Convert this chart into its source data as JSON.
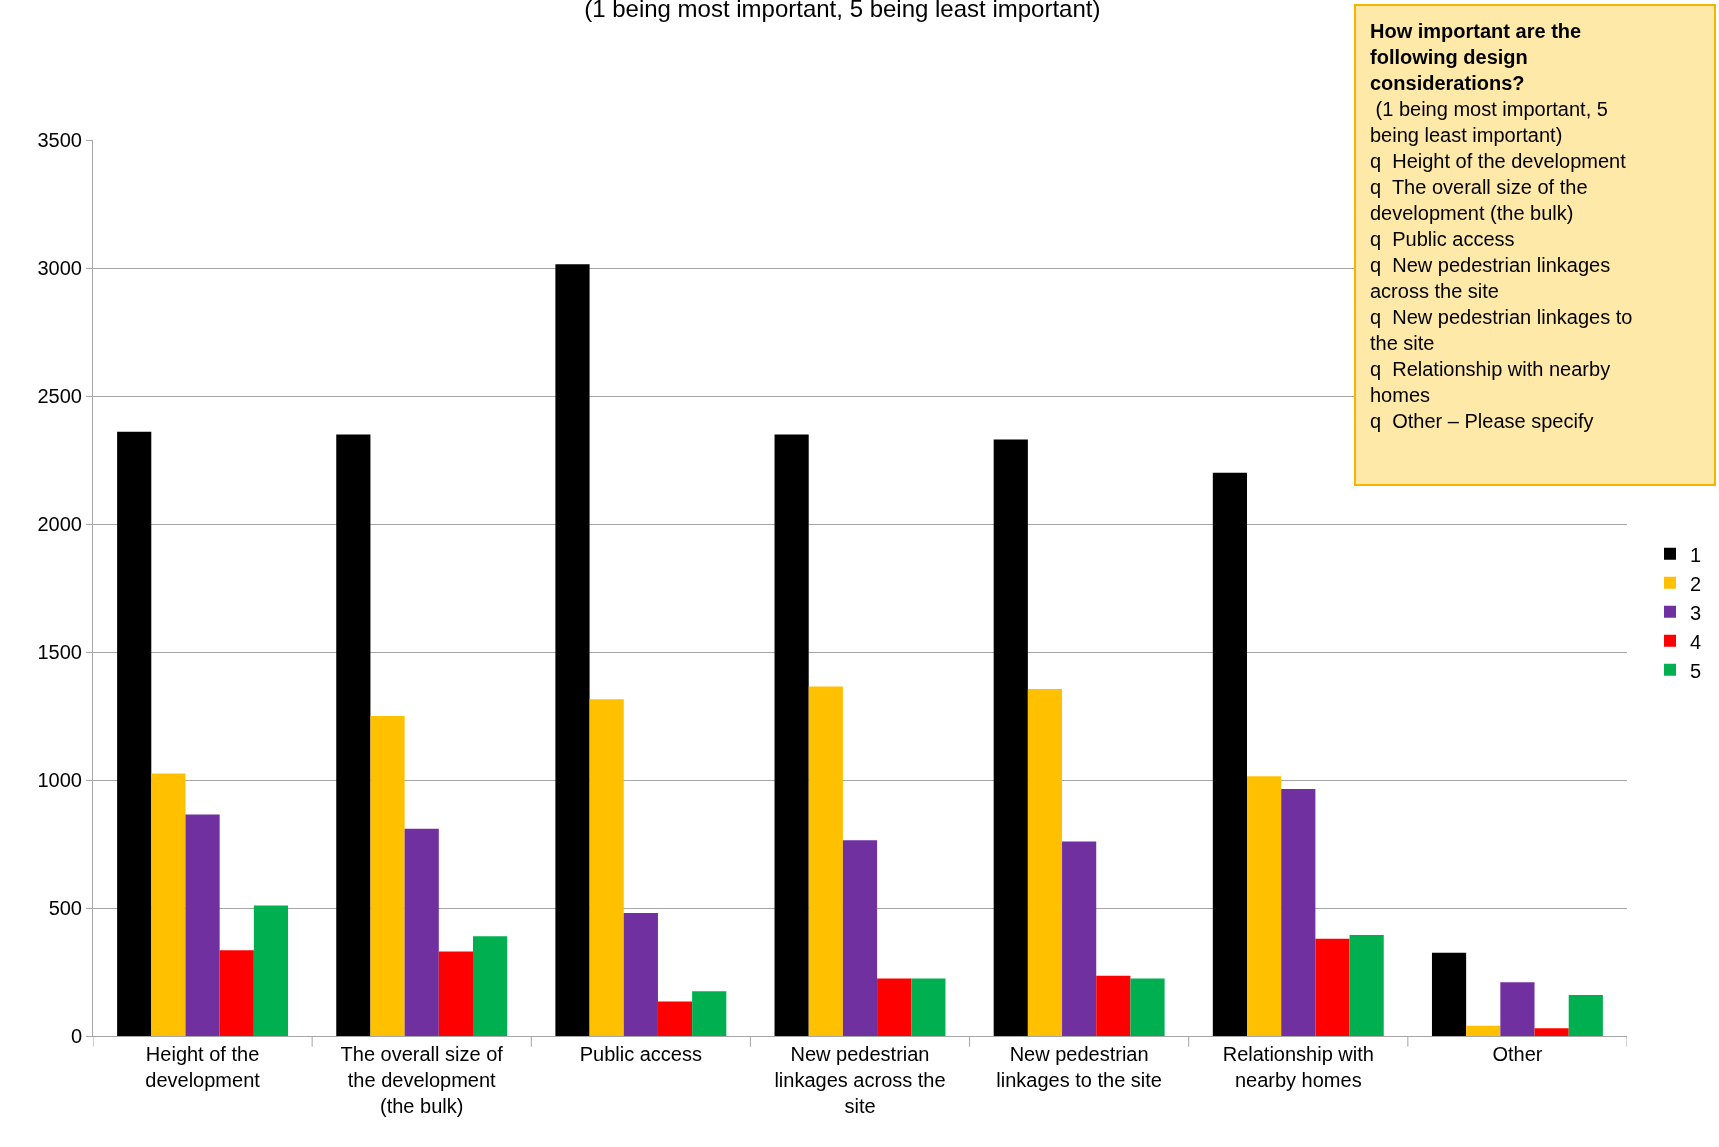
{
  "chart_data": {
    "type": "bar",
    "title": "(1 being most important, 5 being least important)",
    "categories": [
      "Height of the\ndevelopment",
      "The overall size of\nthe development\n(the bulk)",
      "Public access",
      "New pedestrian\nlinkages across the\nsite",
      "New pedestrian\nlinkages to the site",
      "Relationship with\nnearby homes",
      "Other"
    ],
    "series": [
      {
        "name": "1",
        "color": "#000000",
        "values": [
          2360,
          2350,
          3015,
          2350,
          2330,
          2200,
          325
        ]
      },
      {
        "name": "2",
        "color": "#ffc000",
        "values": [
          1025,
          1250,
          1315,
          1365,
          1355,
          1015,
          40
        ]
      },
      {
        "name": "3",
        "color": "#7030a0",
        "values": [
          865,
          810,
          480,
          765,
          760,
          965,
          210
        ]
      },
      {
        "name": "4",
        "color": "#ff0000",
        "values": [
          335,
          330,
          135,
          225,
          235,
          380,
          30
        ]
      },
      {
        "name": "5",
        "color": "#00b050",
        "values": [
          510,
          390,
          175,
          225,
          225,
          395,
          160
        ]
      }
    ],
    "ylim": [
      0,
      3500
    ],
    "yticks": [
      0,
      500,
      1000,
      1500,
      2000,
      2500,
      3000,
      3500
    ],
    "grid": "y",
    "legend": "right",
    "annotations": [
      "How important are the\nfollowing design\nconsiderations?",
      " (1 being most important, 5\nbeing least important)\nq  Height of the development\nq  The overall size of the\ndevelopment (the bulk)\nq  Public access\nq  New pedestrian linkages\nacross the site\nq  New pedestrian linkages to\nthe site\nq  Relationship with nearby\nhomes\nq  Other – Please specify"
    ]
  }
}
